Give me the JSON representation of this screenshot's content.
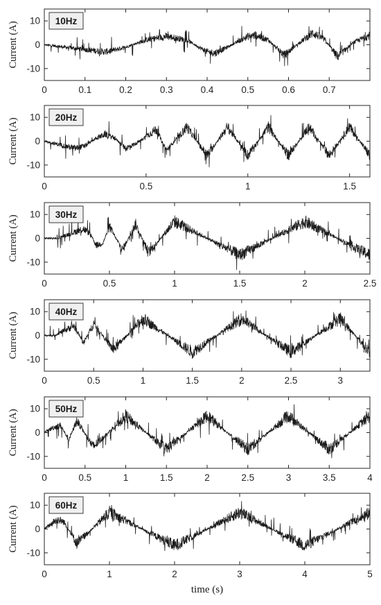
{
  "figure": {
    "xlabel": "time (s)",
    "colors": {
      "line": "#1a1a1a",
      "axes": "#262626",
      "tag_fill": "#f0f0f0",
      "background": "#ffffff"
    }
  },
  "chart_data": [
    {
      "type": "line",
      "panel_label": "10Hz",
      "ylabel": "Current (A)",
      "xlabel": "",
      "xlim": [
        0,
        0.8
      ],
      "ylim": [
        -15,
        15
      ],
      "xticks": [
        0,
        0.1,
        0.2,
        0.3,
        0.4,
        0.5,
        0.6,
        0.7
      ],
      "xtick_labels": [
        "0",
        "0.1",
        "0.2",
        "0.3",
        "0.4",
        "0.5",
        "0.6",
        "0.7"
      ],
      "yticks": [
        -10,
        0,
        10
      ],
      "ytick_labels": [
        "-10",
        "0",
        "10"
      ],
      "grid": false,
      "series": [
        {
          "x": [
            0,
            0.05,
            0.1,
            0.15,
            0.2,
            0.25,
            0.3,
            0.35,
            0.4,
            0.42,
            0.45,
            0.5,
            0.52,
            0.55,
            0.59,
            0.62,
            0.66,
            0.69,
            0.72,
            0.76,
            0.8
          ],
          "values": [
            0,
            -1,
            -2,
            -3,
            -1,
            2,
            3.5,
            2,
            -3,
            -3.5,
            -1,
            3.5,
            4,
            2,
            -4.5,
            0,
            5,
            2,
            -5,
            1,
            4
          ]
        }
      ]
    },
    {
      "type": "line",
      "panel_label": "20Hz",
      "ylabel": "Current (A)",
      "xlabel": "",
      "xlim": [
        0,
        1.6
      ],
      "ylim": [
        -15,
        15
      ],
      "xticks": [
        0,
        0.5,
        1,
        1.5
      ],
      "xtick_labels": [
        "0",
        "0.5",
        "1",
        "1.5"
      ],
      "yticks": [
        -10,
        0,
        10
      ],
      "ytick_labels": [
        "-10",
        "0",
        "10"
      ],
      "grid": false,
      "series": [
        {
          "x": [
            0,
            0.05,
            0.1,
            0.15,
            0.2,
            0.25,
            0.3,
            0.35,
            0.4,
            0.45,
            0.5,
            0.55,
            0.6,
            0.7,
            0.8,
            0.9,
            1.0,
            1.1,
            1.2,
            1.3,
            1.4,
            1.5,
            1.6
          ],
          "values": [
            0,
            -1,
            -2,
            -3,
            -2,
            1,
            3,
            1,
            -3,
            -1,
            2,
            5,
            -4,
            6,
            -6,
            6,
            -6,
            6,
            -6,
            6,
            -6,
            6,
            -6
          ]
        }
      ]
    },
    {
      "type": "line",
      "panel_label": "30Hz",
      "ylabel": "Current (A)",
      "xlabel": "",
      "xlim": [
        0,
        2.5
      ],
      "ylim": [
        -15,
        15
      ],
      "xticks": [
        0,
        0.5,
        1,
        1.5,
        2,
        2.5
      ],
      "xtick_labels": [
        "0",
        "0.5",
        "1",
        "1.5",
        "2",
        "2.5"
      ],
      "yticks": [
        -10,
        0,
        10
      ],
      "ytick_labels": [
        "-10",
        "0",
        "10"
      ],
      "grid": false,
      "series": [
        {
          "x": [
            0,
            0.1,
            0.2,
            0.3,
            0.35,
            0.4,
            0.45,
            0.5,
            0.6,
            0.7,
            0.8,
            1.0,
            1.5,
            2.0,
            2.5
          ],
          "values": [
            0,
            0,
            2,
            4,
            2,
            -3,
            -2,
            5,
            -5,
            6,
            -6,
            7,
            -7,
            7,
            -7
          ]
        }
      ]
    },
    {
      "type": "line",
      "panel_label": "40Hz",
      "ylabel": "Current (A)",
      "xlabel": "",
      "xlim": [
        0,
        3.3
      ],
      "ylim": [
        -15,
        15
      ],
      "xticks": [
        0,
        0.5,
        1,
        1.5,
        2,
        2.5,
        3
      ],
      "xtick_labels": [
        "0",
        "0.5",
        "1",
        "1.5",
        "2",
        "2.5",
        "3"
      ],
      "yticks": [
        -10,
        0,
        10
      ],
      "ytick_labels": [
        "-10",
        "0",
        "10"
      ],
      "grid": false,
      "series": [
        {
          "x": [
            0,
            0.1,
            0.2,
            0.3,
            0.4,
            0.5,
            0.7,
            1.0,
            1.5,
            2.0,
            2.5,
            3.0,
            3.3
          ],
          "values": [
            0,
            0,
            2,
            4,
            -3,
            5,
            -6,
            7,
            -7,
            7,
            -7,
            7,
            -7
          ]
        }
      ]
    },
    {
      "type": "line",
      "panel_label": "50Hz",
      "ylabel": "Current (A)",
      "xlabel": "",
      "xlim": [
        0,
        4
      ],
      "ylim": [
        -15,
        15
      ],
      "xticks": [
        0,
        0.5,
        1,
        1.5,
        2,
        2.5,
        3,
        3.5,
        4
      ],
      "xtick_labels": [
        "0",
        "0.5",
        "1",
        "1.5",
        "2",
        "2.5",
        "3",
        "3.5",
        "4"
      ],
      "yticks": [
        -10,
        0,
        10
      ],
      "ytick_labels": [
        "-10",
        "0",
        "10"
      ],
      "grid": false,
      "series": [
        {
          "x": [
            0,
            0.1,
            0.2,
            0.3,
            0.4,
            0.6,
            1.0,
            1.5,
            2.0,
            2.5,
            3.0,
            3.5,
            4.0
          ],
          "values": [
            0,
            2,
            3,
            -3,
            5,
            -6,
            7,
            -7,
            7,
            -7,
            7,
            -7,
            7
          ]
        }
      ]
    },
    {
      "type": "line",
      "panel_label": "60Hz",
      "ylabel": "Current (A)",
      "xlabel": "time (s)",
      "xlim": [
        0,
        5
      ],
      "ylim": [
        -15,
        15
      ],
      "xticks": [
        0,
        1,
        2,
        3,
        4,
        5
      ],
      "xtick_labels": [
        "0",
        "1",
        "2",
        "3",
        "4",
        "5"
      ],
      "yticks": [
        -10,
        0,
        10
      ],
      "ytick_labels": [
        "-10",
        "0",
        "10"
      ],
      "grid": false,
      "series": [
        {
          "x": [
            0,
            0.1,
            0.2,
            0.3,
            0.5,
            1.0,
            2.0,
            3.0,
            4.0,
            5.0
          ],
          "values": [
            0,
            2,
            4,
            3,
            -6,
            7,
            -7,
            7,
            -7,
            7
          ]
        }
      ]
    }
  ]
}
